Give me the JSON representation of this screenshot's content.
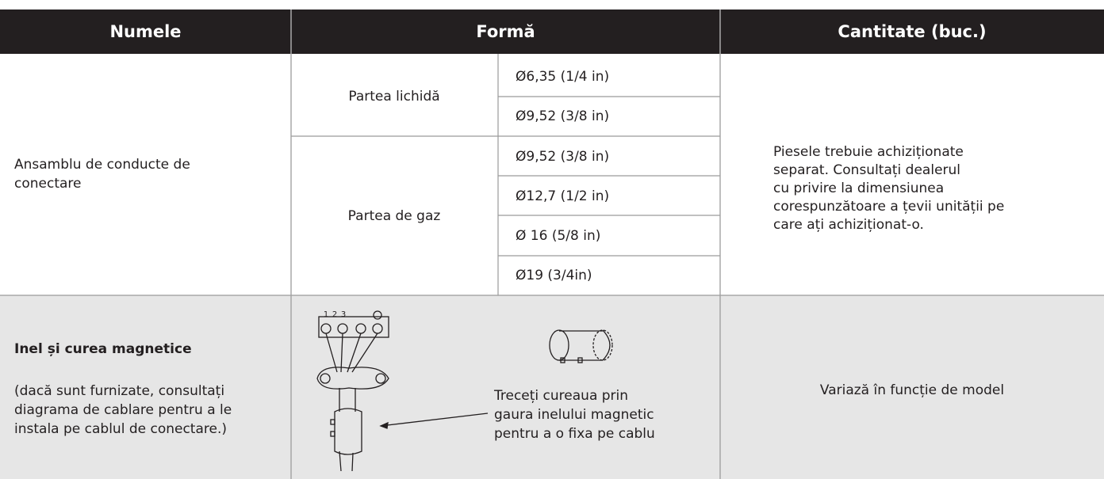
{
  "header": {
    "columns": [
      "Numele",
      "Formă",
      "Cantitate (buc.)"
    ]
  },
  "pipes": {
    "name": "Ansamblu de conducte de conectare",
    "groups": [
      {
        "label": "Partea lichidă",
        "sizes": [
          "Ø6,35 (1/4 in)",
          "Ø9,52 (3/8 in)"
        ]
      },
      {
        "label": "Partea de gaz",
        "sizes": [
          "Ø9,52 (3/8 in)",
          "Ø12,7 (1/2 in)",
          "Ø 16 (5/8 in)",
          "Ø19 (3/4in)"
        ]
      }
    ],
    "quantity": [
      "Piesele trebuie achiziționate",
      "separat. Consultați dealerul",
      "cu privire la dimensiunea",
      "corespunzătoare a țevii unității pe",
      "care ați achiziționat-o."
    ]
  },
  "ring": {
    "name": "Inel și curea magnetice",
    "note": [
      "(dacă sunt furnizate, consultați",
      "diagrama de cablare pentru a le",
      "instala pe cablul de conectare.)"
    ],
    "terminals": [
      "1",
      "2",
      "3"
    ],
    "caption": [
      "Treceți cureaua prin",
      "gaura inelului magnetic",
      "pentru a o fixa pe cablu"
    ],
    "quantity": "Variază în funcție de model"
  }
}
